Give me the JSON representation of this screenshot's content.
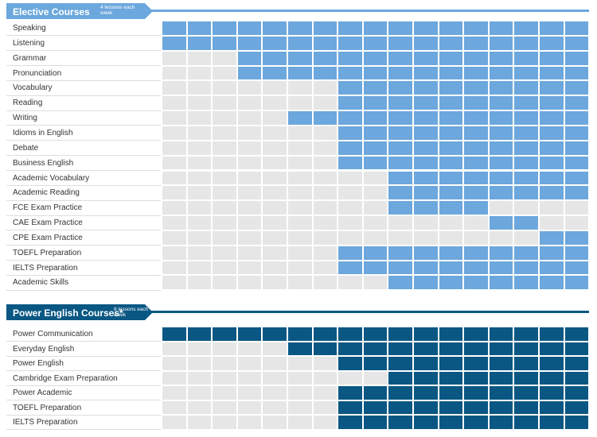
{
  "chart_data": [
    {
      "type": "heatmap",
      "title": "Elective Courses",
      "subtitle": "4 lessons each week",
      "columns": 17,
      "rows": [
        {
          "label": "Speaking",
          "active": [
            1,
            1,
            1,
            1,
            1,
            1,
            1,
            1,
            1,
            1,
            1,
            1,
            1,
            1,
            1,
            1,
            1
          ]
        },
        {
          "label": "Listening",
          "active": [
            1,
            1,
            1,
            1,
            1,
            1,
            1,
            1,
            1,
            1,
            1,
            1,
            1,
            1,
            1,
            1,
            1
          ]
        },
        {
          "label": "Grammar",
          "active": [
            0,
            0,
            0,
            1,
            1,
            1,
            1,
            1,
            1,
            1,
            1,
            1,
            1,
            1,
            1,
            1,
            1
          ]
        },
        {
          "label": "Pronunciation",
          "active": [
            0,
            0,
            0,
            1,
            1,
            1,
            1,
            1,
            1,
            1,
            1,
            1,
            1,
            1,
            1,
            1,
            1
          ]
        },
        {
          "label": "Vocabulary",
          "active": [
            0,
            0,
            0,
            0,
            0,
            0,
            0,
            1,
            1,
            1,
            1,
            1,
            1,
            1,
            1,
            1,
            1
          ]
        },
        {
          "label": "Reading",
          "active": [
            0,
            0,
            0,
            0,
            0,
            0,
            0,
            1,
            1,
            1,
            1,
            1,
            1,
            1,
            1,
            1,
            1
          ]
        },
        {
          "label": "Writing",
          "active": [
            0,
            0,
            0,
            0,
            0,
            1,
            1,
            1,
            1,
            1,
            1,
            1,
            1,
            1,
            1,
            1,
            1
          ]
        },
        {
          "label": "Idioms in English",
          "active": [
            0,
            0,
            0,
            0,
            0,
            0,
            0,
            1,
            1,
            1,
            1,
            1,
            1,
            1,
            1,
            1,
            1
          ]
        },
        {
          "label": "Debate",
          "active": [
            0,
            0,
            0,
            0,
            0,
            0,
            0,
            1,
            1,
            1,
            1,
            1,
            1,
            1,
            1,
            1,
            1
          ]
        },
        {
          "label": "Business English",
          "active": [
            0,
            0,
            0,
            0,
            0,
            0,
            0,
            1,
            1,
            1,
            1,
            1,
            1,
            1,
            1,
            1,
            1
          ]
        },
        {
          "label": "Academic Vocabulary",
          "active": [
            0,
            0,
            0,
            0,
            0,
            0,
            0,
            0,
            0,
            1,
            1,
            1,
            1,
            1,
            1,
            1,
            1
          ]
        },
        {
          "label": "Academic Reading",
          "active": [
            0,
            0,
            0,
            0,
            0,
            0,
            0,
            0,
            0,
            1,
            1,
            1,
            1,
            1,
            1,
            1,
            1
          ]
        },
        {
          "label": "FCE Exam Practice",
          "active": [
            0,
            0,
            0,
            0,
            0,
            0,
            0,
            0,
            0,
            1,
            1,
            1,
            1,
            0,
            0,
            0,
            0
          ]
        },
        {
          "label": "CAE Exam Practice",
          "active": [
            0,
            0,
            0,
            0,
            0,
            0,
            0,
            0,
            0,
            0,
            0,
            0,
            0,
            1,
            1,
            0,
            0
          ]
        },
        {
          "label": "CPE Exam Practice",
          "active": [
            0,
            0,
            0,
            0,
            0,
            0,
            0,
            0,
            0,
            0,
            0,
            0,
            0,
            0,
            0,
            1,
            1
          ]
        },
        {
          "label": "TOEFL Preparation",
          "active": [
            0,
            0,
            0,
            0,
            0,
            0,
            0,
            1,
            1,
            1,
            1,
            1,
            1,
            1,
            1,
            1,
            1
          ]
        },
        {
          "label": "IELTS Preparation",
          "active": [
            0,
            0,
            0,
            0,
            0,
            0,
            0,
            1,
            1,
            1,
            1,
            1,
            1,
            1,
            1,
            1,
            1
          ]
        },
        {
          "label": "Academic Skills",
          "active": [
            0,
            0,
            0,
            0,
            0,
            0,
            0,
            0,
            0,
            1,
            1,
            1,
            1,
            1,
            1,
            1,
            1
          ]
        }
      ]
    },
    {
      "type": "heatmap",
      "title": "Power English Courses*",
      "subtitle": "8 lessons each week",
      "columns": 17,
      "rows": [
        {
          "label": "Power Communication",
          "active": [
            1,
            1,
            1,
            1,
            1,
            1,
            1,
            1,
            1,
            1,
            1,
            1,
            1,
            1,
            1,
            1,
            1
          ]
        },
        {
          "label": "Everyday English",
          "active": [
            0,
            0,
            0,
            0,
            0,
            1,
            1,
            1,
            1,
            1,
            1,
            1,
            1,
            1,
            1,
            1,
            1
          ]
        },
        {
          "label": "Power English",
          "active": [
            0,
            0,
            0,
            0,
            0,
            0,
            0,
            1,
            1,
            1,
            1,
            1,
            1,
            1,
            1,
            1,
            1
          ]
        },
        {
          "label": "Cambridge Exam Preparation",
          "active": [
            0,
            0,
            0,
            0,
            0,
            0,
            0,
            0,
            0,
            1,
            1,
            1,
            1,
            1,
            1,
            1,
            1
          ]
        },
        {
          "label": "Power Academic",
          "active": [
            0,
            0,
            0,
            0,
            0,
            0,
            0,
            1,
            1,
            1,
            1,
            1,
            1,
            1,
            1,
            1,
            1
          ]
        },
        {
          "label": "TOEFL Preparation",
          "active": [
            0,
            0,
            0,
            0,
            0,
            0,
            0,
            1,
            1,
            1,
            1,
            1,
            1,
            1,
            1,
            1,
            1
          ]
        },
        {
          "label": "IELTS Preparation",
          "active": [
            0,
            0,
            0,
            0,
            0,
            0,
            0,
            1,
            1,
            1,
            1,
            1,
            1,
            1,
            1,
            1,
            1
          ]
        }
      ]
    }
  ],
  "colors": {
    "elective_active": "#6ca7dd",
    "power_active": "#0a5783",
    "inactive": "#e6e6e6",
    "cell_border": "#ffffff",
    "elective_header": "#6ca7dd",
    "power_header": "#0a5783"
  }
}
